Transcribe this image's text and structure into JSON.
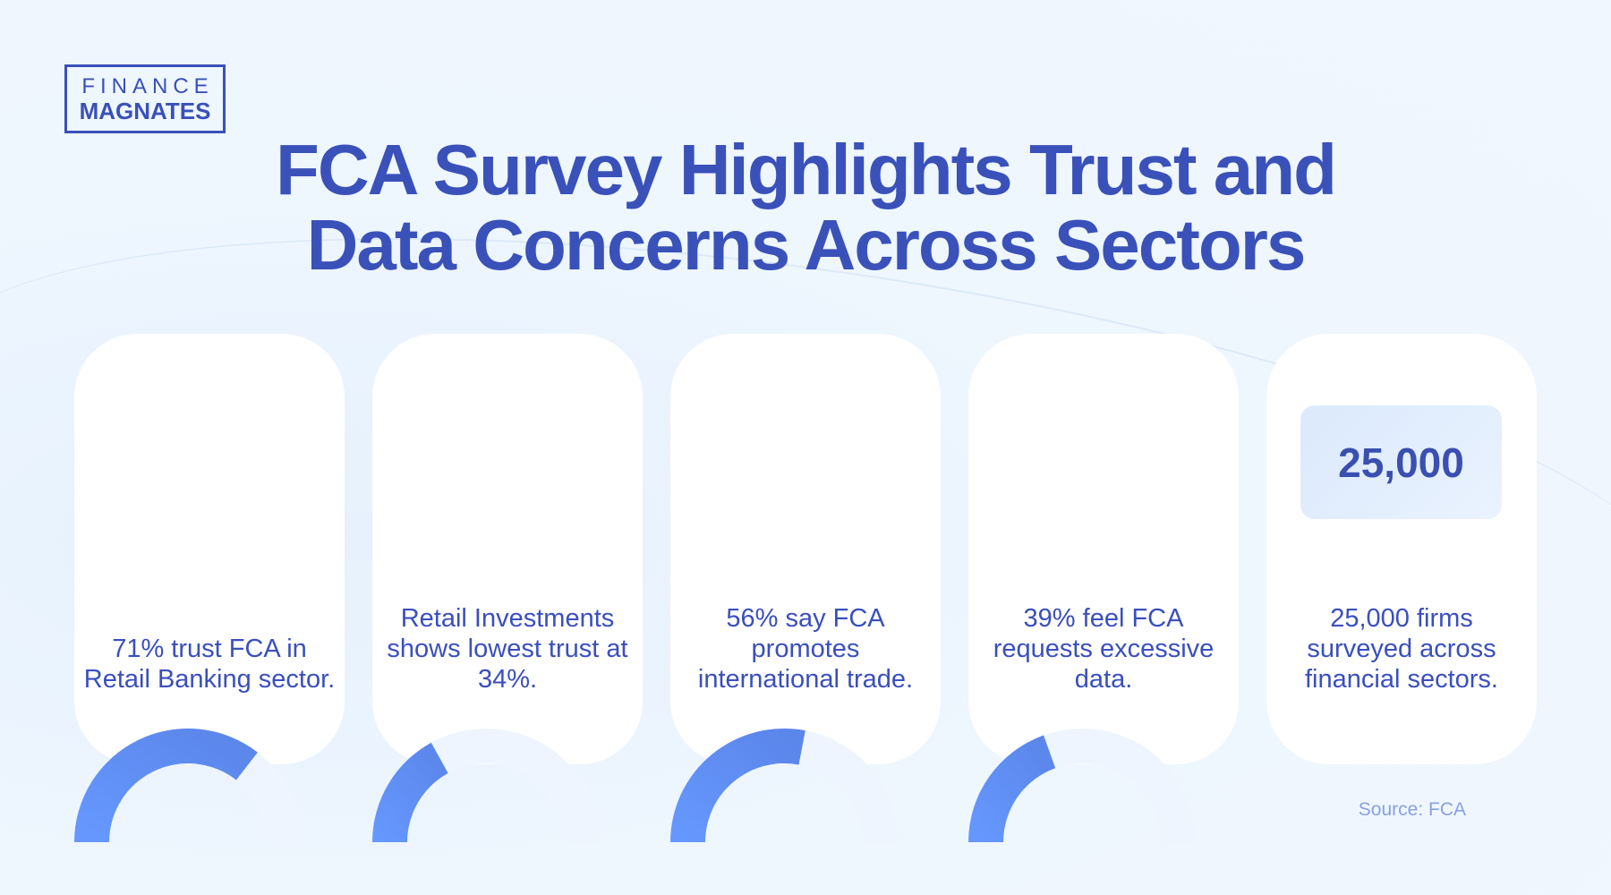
{
  "logo": {
    "line1": "FINANCE",
    "line2": "MAGNATES"
  },
  "title": {
    "line1": "FCA Survey Highlights Trust and",
    "line2": "Data Concerns Across Sectors"
  },
  "colors": {
    "accent": "#3a51b9",
    "gauge_fill": "#6699ff",
    "gauge_track": "#eef5fe"
  },
  "cards": [
    {
      "value_percent": 71,
      "text": "71% trust FCA in Retail Banking sector."
    },
    {
      "value_percent": 34,
      "text": "Retail Investments shows lowest trust at 34%."
    },
    {
      "value_percent": 56,
      "text": "56% say FCA promotes international trade."
    },
    {
      "value_percent": 39,
      "text": "39% feel FCA requests excessive data."
    },
    {
      "number": "25,000",
      "text": "25,000 firms surveyed across financial sectors."
    }
  ],
  "source": "Source: FCA"
}
